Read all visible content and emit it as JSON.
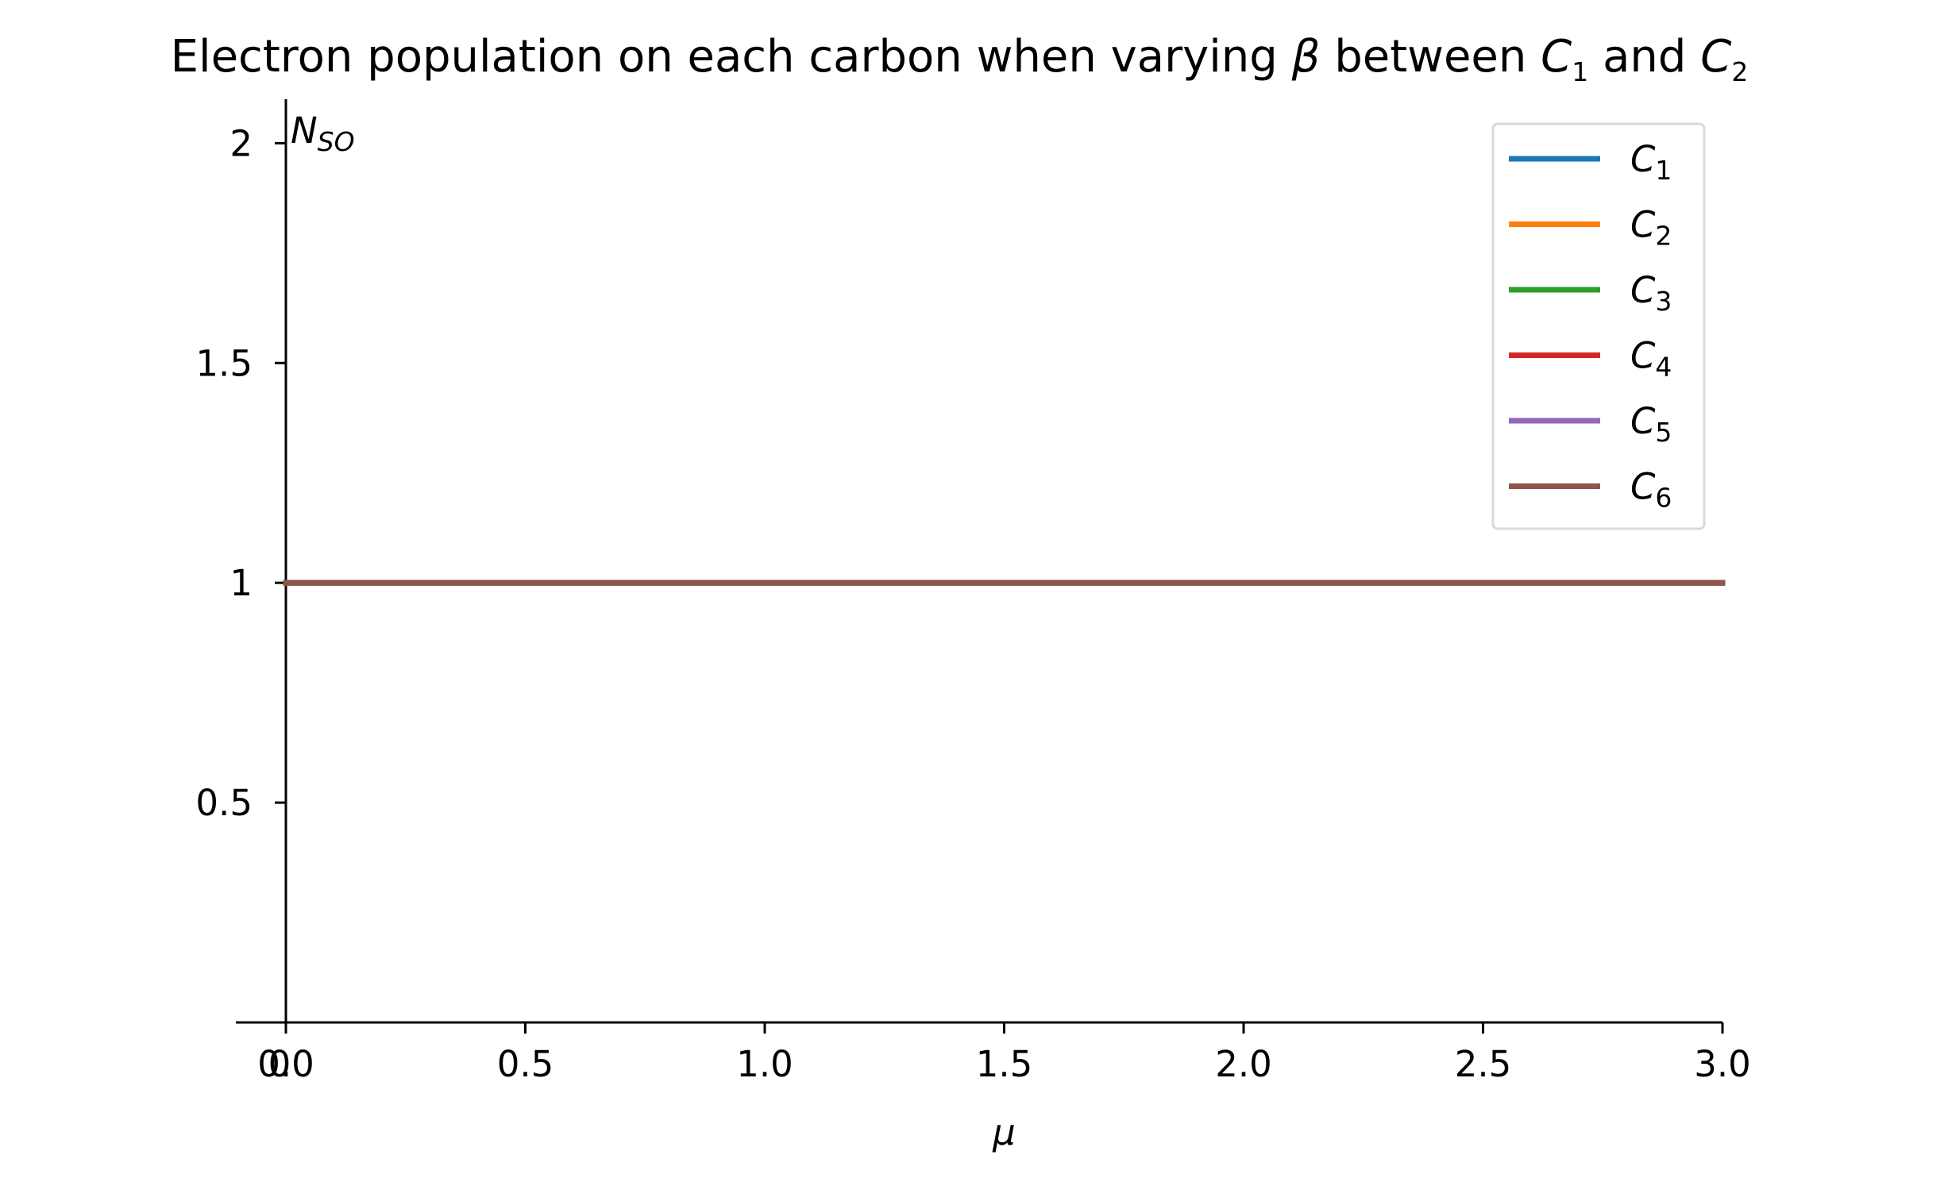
{
  "chart_data": {
    "type": "line",
    "title": {
      "text_before_beta": "Electron population on each carbon when varying ",
      "beta_symbol": "β",
      "text_between": " between ",
      "c1_base": "C",
      "c1_sub": "1",
      "and_text": " and ",
      "c2_base": "C",
      "c2_sub": "2"
    },
    "xlabel": "μ",
    "ylabel": {
      "base": "N",
      "sub": "SO"
    },
    "xlim": [
      0,
      3
    ],
    "ylim": [
      0,
      2.1
    ],
    "x_ticks": [
      {
        "value": 0,
        "label": "0.0"
      },
      {
        "value": 0.5,
        "label": "0.5"
      },
      {
        "value": 1,
        "label": "1.0"
      },
      {
        "value": 1.5,
        "label": "1.5"
      },
      {
        "value": 2,
        "label": "2.0"
      },
      {
        "value": 2.5,
        "label": "2.5"
      },
      {
        "value": 3,
        "label": "3.0"
      }
    ],
    "x_origin_label": "0",
    "y_ticks": [
      {
        "value": 0.5,
        "label": "0.5"
      },
      {
        "value": 1,
        "label": "1"
      },
      {
        "value": 1.5,
        "label": "1.5"
      },
      {
        "value": 2,
        "label": "2"
      }
    ],
    "grid": false,
    "legend_position": "top-right",
    "series": [
      {
        "name_base": "C",
        "name_sub": "1",
        "color": "#1f77b4",
        "x": [
          0,
          3
        ],
        "y": [
          1,
          1
        ]
      },
      {
        "name_base": "C",
        "name_sub": "2",
        "color": "#ff7f0e",
        "x": [
          0,
          3
        ],
        "y": [
          1,
          1
        ]
      },
      {
        "name_base": "C",
        "name_sub": "3",
        "color": "#2ca02c",
        "x": [
          0,
          3
        ],
        "y": [
          1,
          1
        ]
      },
      {
        "name_base": "C",
        "name_sub": "4",
        "color": "#d62728",
        "x": [
          0,
          3
        ],
        "y": [
          1,
          1
        ]
      },
      {
        "name_base": "C",
        "name_sub": "5",
        "color": "#9467bd",
        "x": [
          0,
          3
        ],
        "y": [
          1,
          1
        ]
      },
      {
        "name_base": "C",
        "name_sub": "6",
        "color": "#8c564b",
        "x": [
          0,
          3
        ],
        "y": [
          1,
          1
        ]
      }
    ]
  }
}
